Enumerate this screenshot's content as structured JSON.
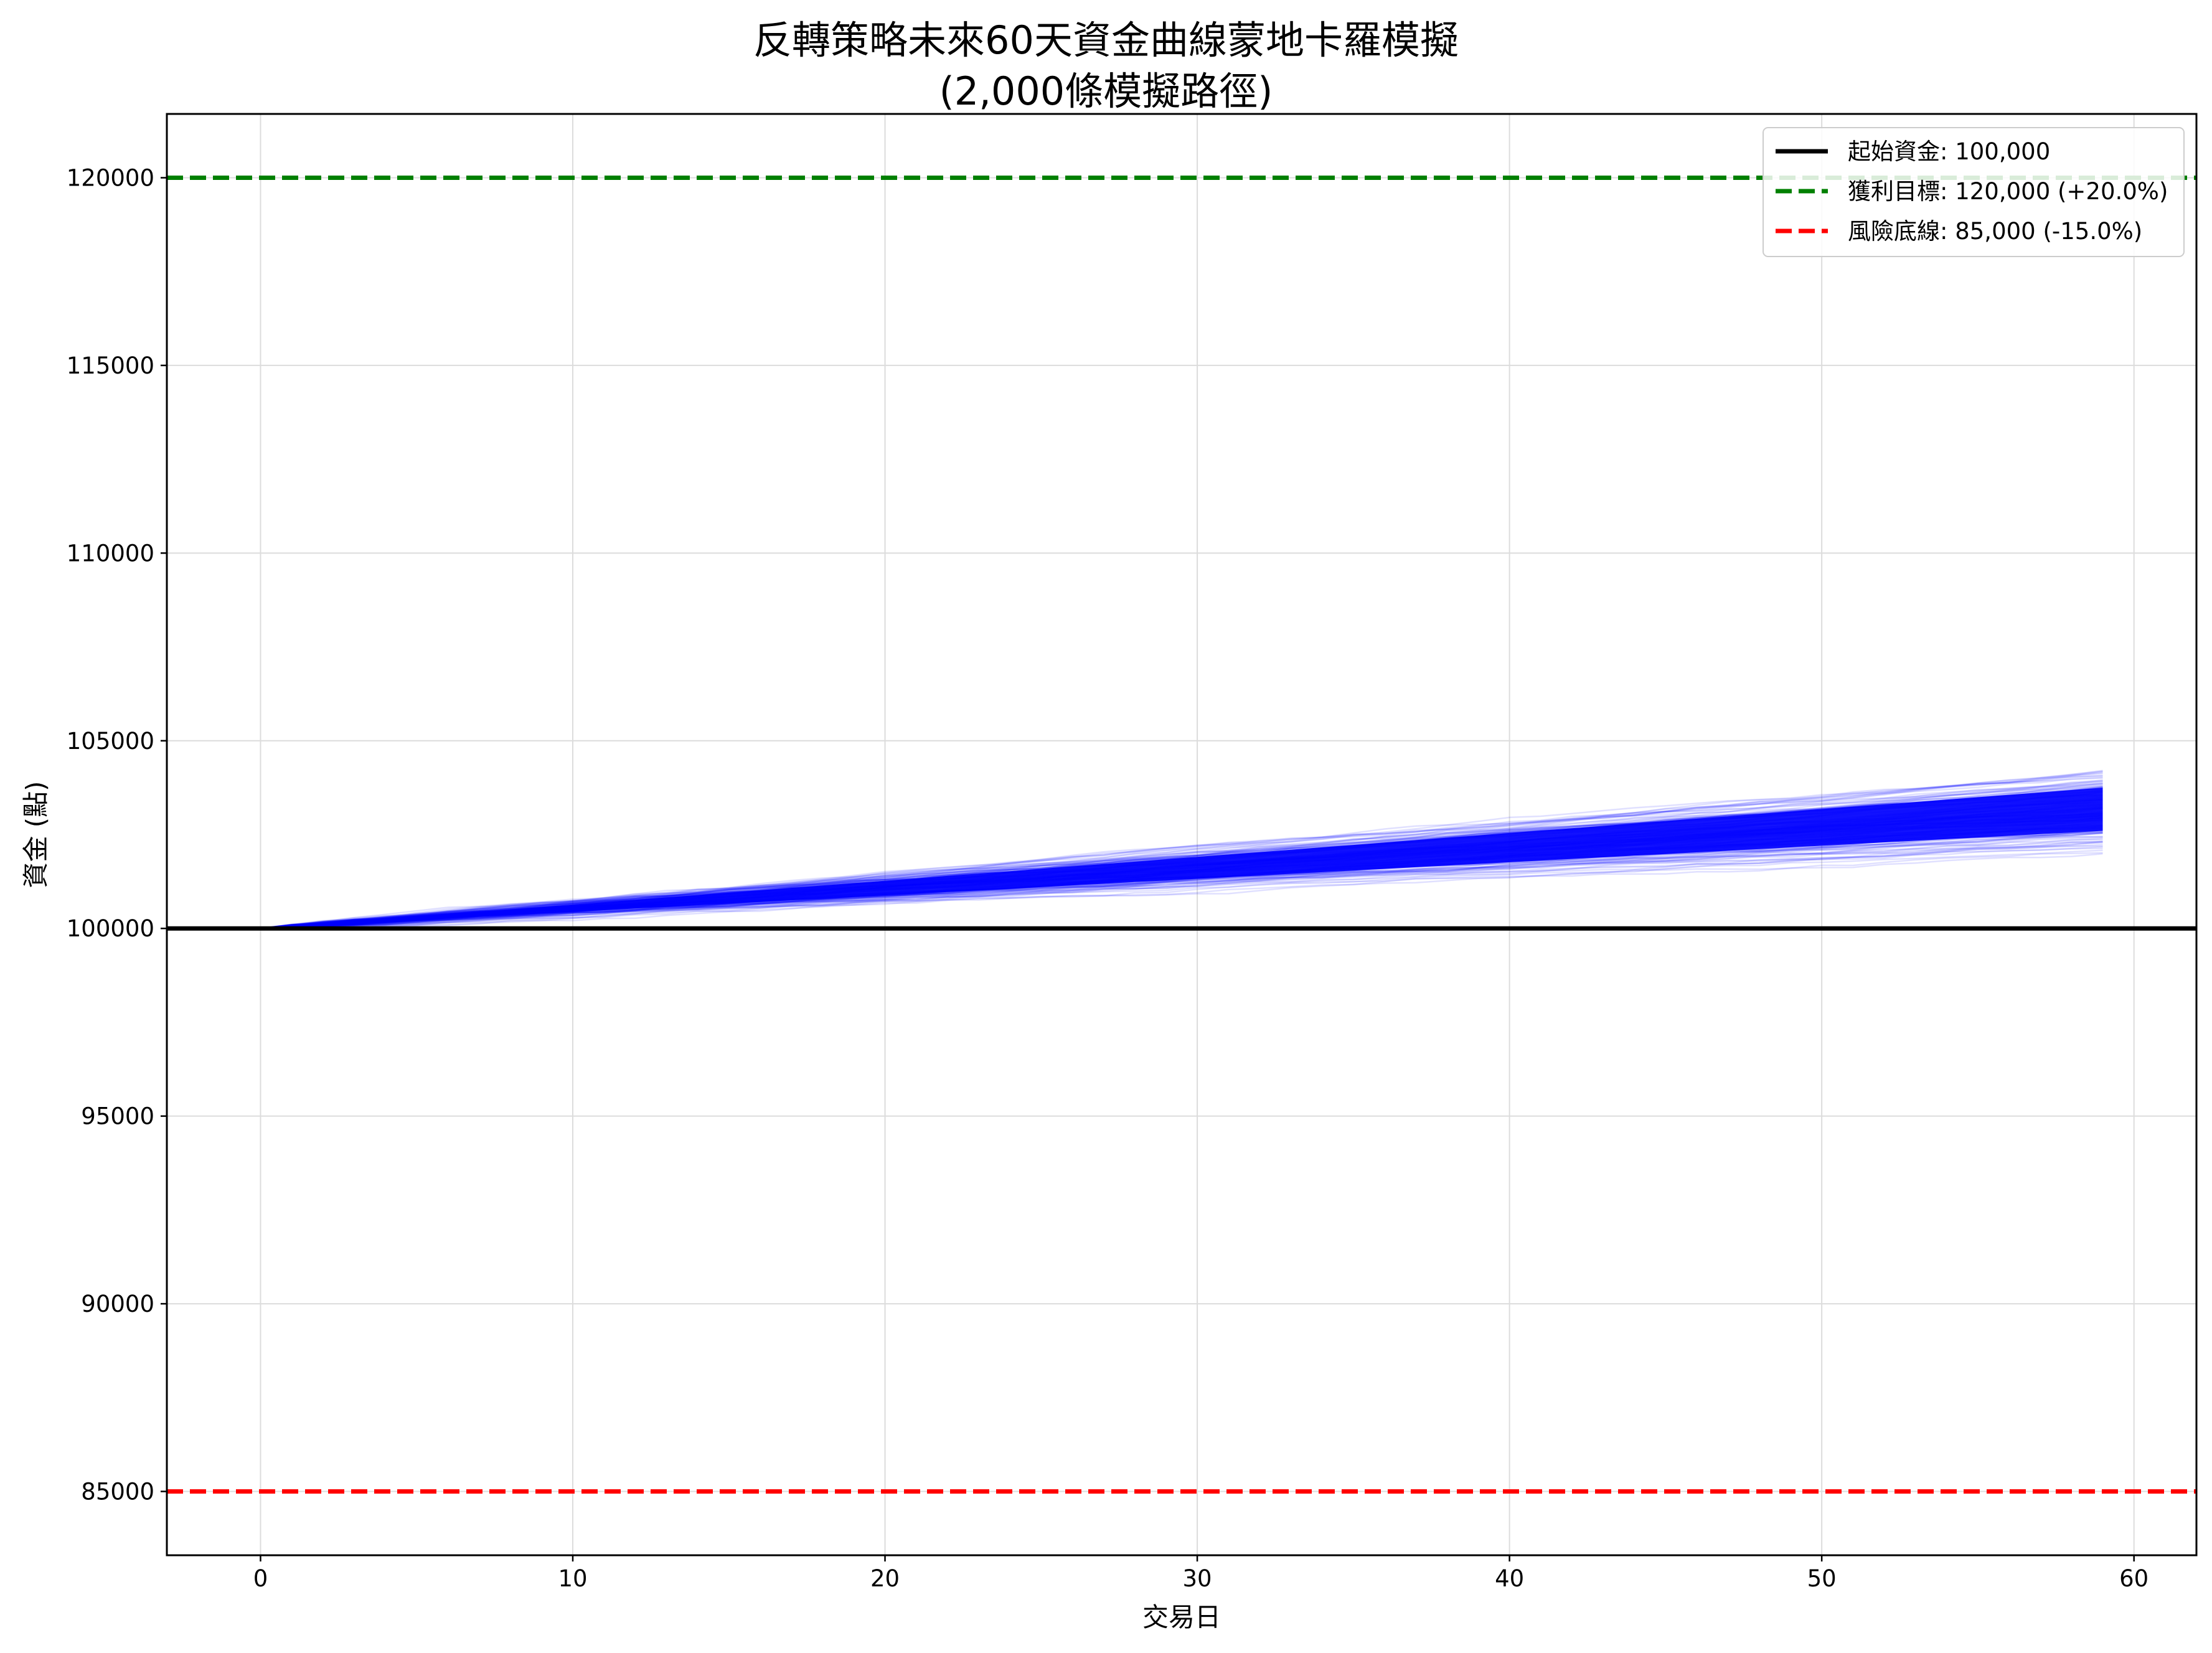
{
  "chart_data": {
    "type": "line",
    "title": "反轉策略未來60天資金曲線蒙地卡羅模擬",
    "subtitle": "(2,000條模擬路徑)",
    "xlabel": "交易日",
    "ylabel": "資金 (點)",
    "xlim": [
      -3,
      62
    ],
    "ylim": [
      83300,
      121700
    ],
    "xticks": [
      0,
      10,
      20,
      30,
      40,
      50,
      60
    ],
    "yticks": [
      85000,
      90000,
      95000,
      100000,
      105000,
      110000,
      115000,
      120000
    ],
    "grid": true,
    "legend_position": "top-right",
    "simulation": {
      "paths": 2000,
      "days": 60,
      "start_value": 100000,
      "end_range": [
        102300,
        104000
      ],
      "color": "#0000ff"
    },
    "reference_lines": [
      {
        "name": "起始資金: 100,000",
        "y": 100000,
        "color": "#000000",
        "style": "solid"
      },
      {
        "name": "獲利目標: 120,000 (+20.0%)",
        "y": 120000,
        "color": "#008000",
        "style": "dashed"
      },
      {
        "name": "風險底線: 85,000 (-15.0%)",
        "y": 85000,
        "color": "#ff0000",
        "style": "dashed"
      }
    ]
  }
}
